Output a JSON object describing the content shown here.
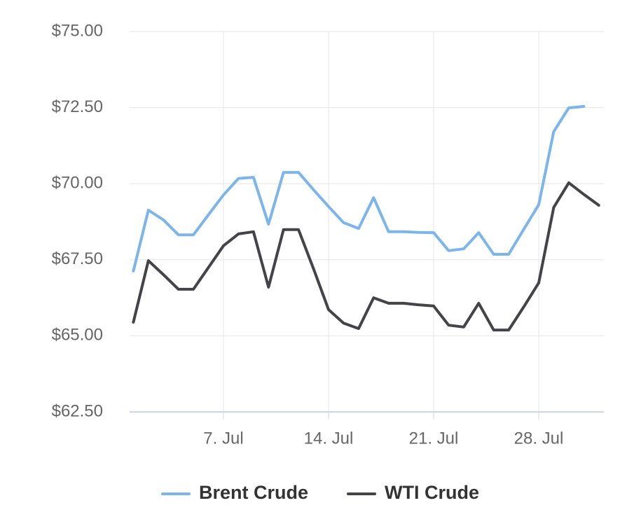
{
  "chart_data": {
    "type": "line",
    "categories": [
      null,
      null,
      null,
      null,
      null,
      null,
      "7. Jul",
      null,
      null,
      null,
      null,
      null,
      null,
      "14. Jul",
      null,
      null,
      null,
      null,
      null,
      null,
      "21. Jul",
      null,
      null,
      null,
      null,
      null,
      null,
      "28. Jul",
      null,
      null,
      null,
      null
    ],
    "series": [
      {
        "name": "Brent Crude",
        "color": "#7cb5ec",
        "values": [
          67.13,
          69.13,
          68.81,
          68.32,
          68.32,
          68.98,
          69.63,
          70.17,
          70.21,
          68.67,
          70.37,
          70.37,
          69.8,
          69.25,
          68.72,
          68.53,
          69.54,
          68.42,
          68.42,
          68.4,
          68.39,
          67.8,
          67.86,
          68.39,
          67.68,
          67.68,
          68.5,
          69.31,
          71.71,
          72.49,
          72.54,
          null
        ]
      },
      {
        "name": "WTI Crude",
        "color": "#434348",
        "values": [
          65.45,
          67.47,
          67.01,
          66.53,
          66.53,
          67.25,
          67.96,
          68.35,
          68.42,
          66.6,
          68.49,
          68.49,
          67.2,
          65.86,
          65.42,
          65.24,
          66.25,
          66.07,
          66.07,
          66.02,
          65.98,
          65.35,
          65.29,
          66.07,
          65.19,
          65.19,
          65.95,
          66.74,
          69.22,
          70.03,
          69.65,
          69.29
        ]
      }
    ],
    "ylim": [
      62.5,
      75
    ],
    "yticks": [
      {
        "value": 62.5,
        "label": "$62.50"
      },
      {
        "value": 65,
        "label": "$65.00"
      },
      {
        "value": 67.5,
        "label": "$67.50"
      },
      {
        "value": 70,
        "label": "$70.00"
      },
      {
        "value": 72.5,
        "label": "$72.50"
      },
      {
        "value": 75,
        "label": "$75.00"
      }
    ],
    "grid": true,
    "legend": "bottom"
  }
}
